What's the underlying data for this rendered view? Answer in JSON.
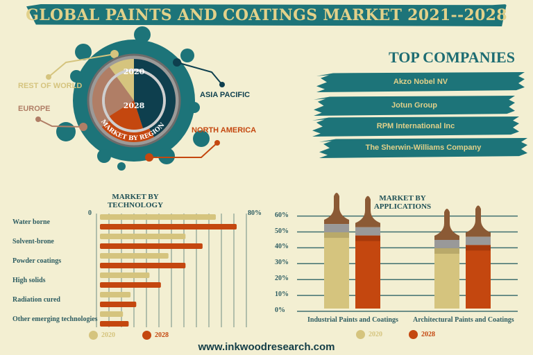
{
  "title": "GLOBAL PAINTS AND COATINGS MARKET 2021--2028",
  "colors": {
    "teal": "#1d7479",
    "dark_teal": "#0e3f4e",
    "orange": "#c4470f",
    "beige": "#d5c47e",
    "brown": "#b07e66",
    "bg": "#f3efd2"
  },
  "top_companies": {
    "title": "TOP COMPANIES",
    "items": [
      "Akzo Nobel NV",
      "Jotun Group",
      "RPM International Inc",
      "The Sherwin-Williams Company"
    ]
  },
  "chart_data": [
    {
      "type": "pie",
      "title": "MARKET BY REGION",
      "rings": [
        {
          "name": "2020",
          "values": [
            42,
            22,
            26,
            10
          ]
        },
        {
          "name": "2028",
          "values": [
            45,
            21,
            24,
            10
          ]
        }
      ],
      "categories": [
        "ASIA PACIFIC",
        "NORTH AMERICA",
        "EUROPE",
        "REST OF WORLD"
      ],
      "ring_labels": [
        "2020",
        "2028"
      ]
    },
    {
      "type": "bar",
      "orientation": "horizontal",
      "title": "MARKET BY TECHNOLOGY",
      "categories": [
        "Water borne",
        "Solvent-brone",
        "Powder coatings",
        "High solids",
        "Radiation cured",
        "Other emerging technologies"
      ],
      "series": [
        {
          "name": "2020",
          "values": [
            63,
            47,
            38,
            28,
            18,
            14
          ]
        },
        {
          "name": "2028",
          "values": [
            74,
            56,
            47,
            34,
            21,
            17
          ]
        }
      ],
      "xlim": [
        0,
        80
      ],
      "tick_labels": [
        "0",
        "80%"
      ]
    },
    {
      "type": "bar",
      "title": "MARKET BY APPLICATIONS",
      "categories": [
        "Industrial Paints and Coatings",
        "Architectural Paints and Coatings"
      ],
      "series": [
        {
          "name": "2020",
          "values": [
            55,
            45
          ]
        },
        {
          "name": "2028",
          "values": [
            53,
            47
          ]
        }
      ],
      "ylim": [
        0,
        60
      ],
      "tick_labels": [
        "0%",
        "10%",
        "20%",
        "30%",
        "40%",
        "50%",
        "60%"
      ]
    }
  ],
  "legend": [
    "2020",
    "2028"
  ],
  "footer": "www.inkwoodresearch.com"
}
